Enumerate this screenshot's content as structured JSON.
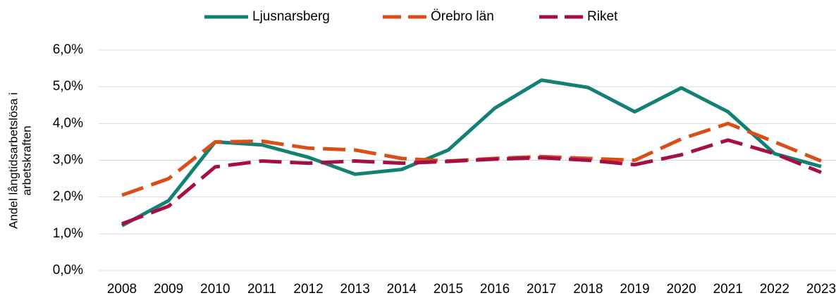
{
  "chart_data": {
    "type": "line",
    "ylabel": [
      "Andel långtidsarbetslösa i",
      "arbetskraften"
    ],
    "categories": [
      "2008",
      "2009",
      "2010",
      "2011",
      "2012",
      "2013",
      "2014",
      "2015",
      "2016",
      "2017",
      "2018",
      "2019",
      "2020",
      "2021",
      "2022",
      "2023"
    ],
    "series": [
      {
        "name": "Ljusnarsberg",
        "color": "#138074",
        "dash": false,
        "values": [
          1.22,
          1.9,
          3.5,
          3.42,
          3.08,
          2.62,
          2.75,
          3.28,
          4.42,
          5.18,
          4.98,
          4.32,
          4.97,
          4.32,
          3.18,
          2.83
        ]
      },
      {
        "name": "Örebro län",
        "color": "#d94f1a",
        "dash": true,
        "values": [
          2.05,
          2.5,
          3.5,
          3.52,
          3.33,
          3.28,
          3.05,
          2.98,
          3.05,
          3.1,
          3.05,
          3.0,
          3.58,
          4.0,
          3.5,
          2.98
        ]
      },
      {
        "name": "Riket",
        "color": "#a50f45",
        "dash": true,
        "values": [
          1.27,
          1.75,
          2.82,
          2.98,
          2.92,
          2.98,
          2.92,
          2.97,
          3.03,
          3.07,
          3.0,
          2.88,
          3.15,
          3.55,
          3.18,
          2.67
        ]
      }
    ],
    "ylim": [
      0,
      6
    ],
    "yticks": [
      {
        "value": 0,
        "label": "0,0%"
      },
      {
        "value": 1,
        "label": "1,0%"
      },
      {
        "value": 2,
        "label": "2,0%"
      },
      {
        "value": 3,
        "label": "3,0%"
      },
      {
        "value": 4,
        "label": "4,0%"
      },
      {
        "value": 5,
        "label": "5,0%"
      },
      {
        "value": 6,
        "label": "6,0%"
      }
    ],
    "grid": true,
    "legend": "top"
  }
}
